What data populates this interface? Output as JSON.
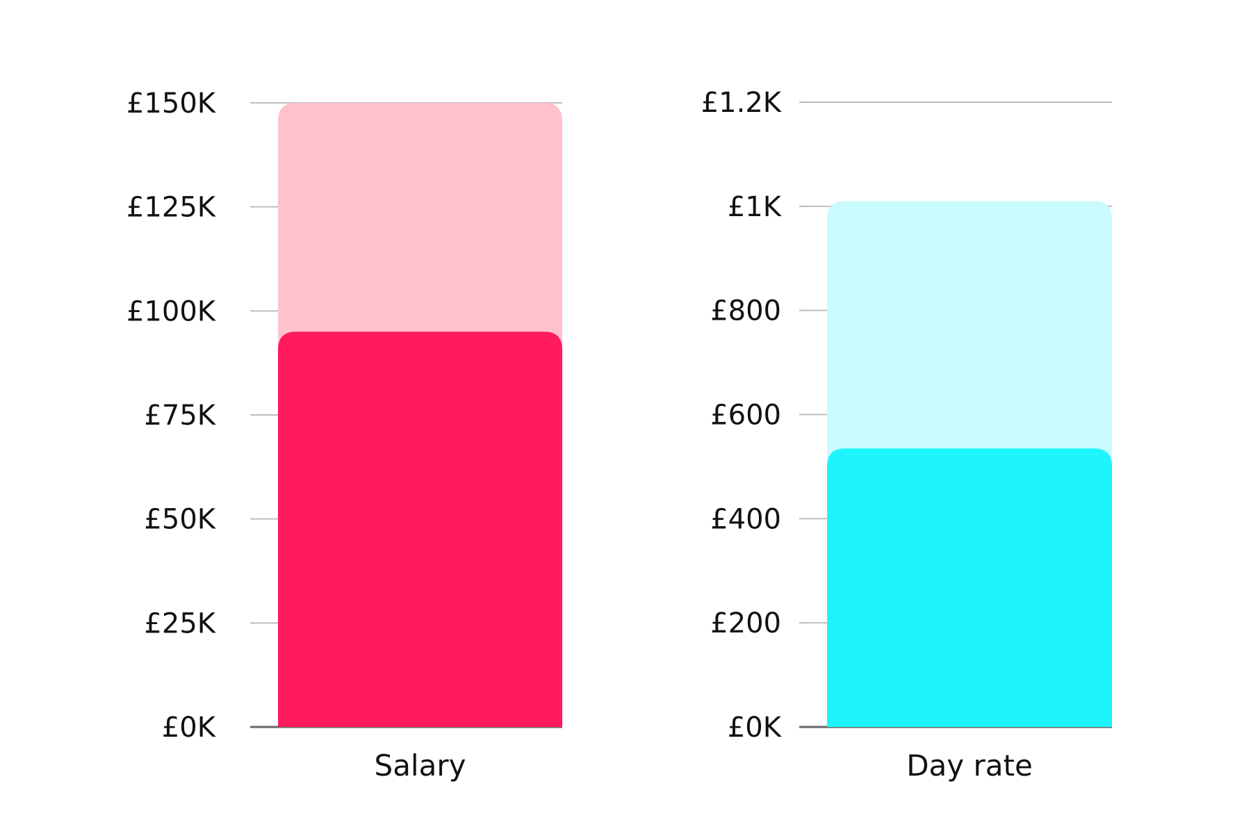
{
  "chart_data": [
    {
      "type": "bar",
      "categories": [
        "Salary"
      ],
      "series": [
        {
          "values": [
            150000
          ],
          "color": "#FFC1CC"
        },
        {
          "values": [
            95000
          ],
          "color": "#FF1A5E"
        }
      ],
      "ylim": [
        0,
        150000
      ],
      "yticks": [
        {
          "value": 0,
          "label": "£0K"
        },
        {
          "value": 25000,
          "label": "£25K"
        },
        {
          "value": 50000,
          "label": "£50K"
        },
        {
          "value": 75000,
          "label": "£75K"
        },
        {
          "value": 100000,
          "label": "£100K"
        },
        {
          "value": 125000,
          "label": "£125K"
        },
        {
          "value": 150000,
          "label": "£150K"
        }
      ],
      "grid": true,
      "gridline_color": "#BDBDBD",
      "baseline_color": "#666666"
    },
    {
      "type": "bar",
      "categories": [
        "Day rate"
      ],
      "series": [
        {
          "values": [
            1010
          ],
          "color": "#C9FAFC"
        },
        {
          "values": [
            535
          ],
          "color": "#1EF4FC"
        }
      ],
      "ylim": [
        0,
        1200
      ],
      "yticks": [
        {
          "value": 0,
          "label": "£0K"
        },
        {
          "value": 200,
          "label": "£200"
        },
        {
          "value": 400,
          "label": "£400"
        },
        {
          "value": 600,
          "label": "£600"
        },
        {
          "value": 800,
          "label": "£800"
        },
        {
          "value": 1000,
          "label": "£1K"
        },
        {
          "value": 1200,
          "label": "£1.2K"
        }
      ],
      "grid": true,
      "gridline_color": "#BDBDBD",
      "baseline_color": "#666666"
    }
  ]
}
